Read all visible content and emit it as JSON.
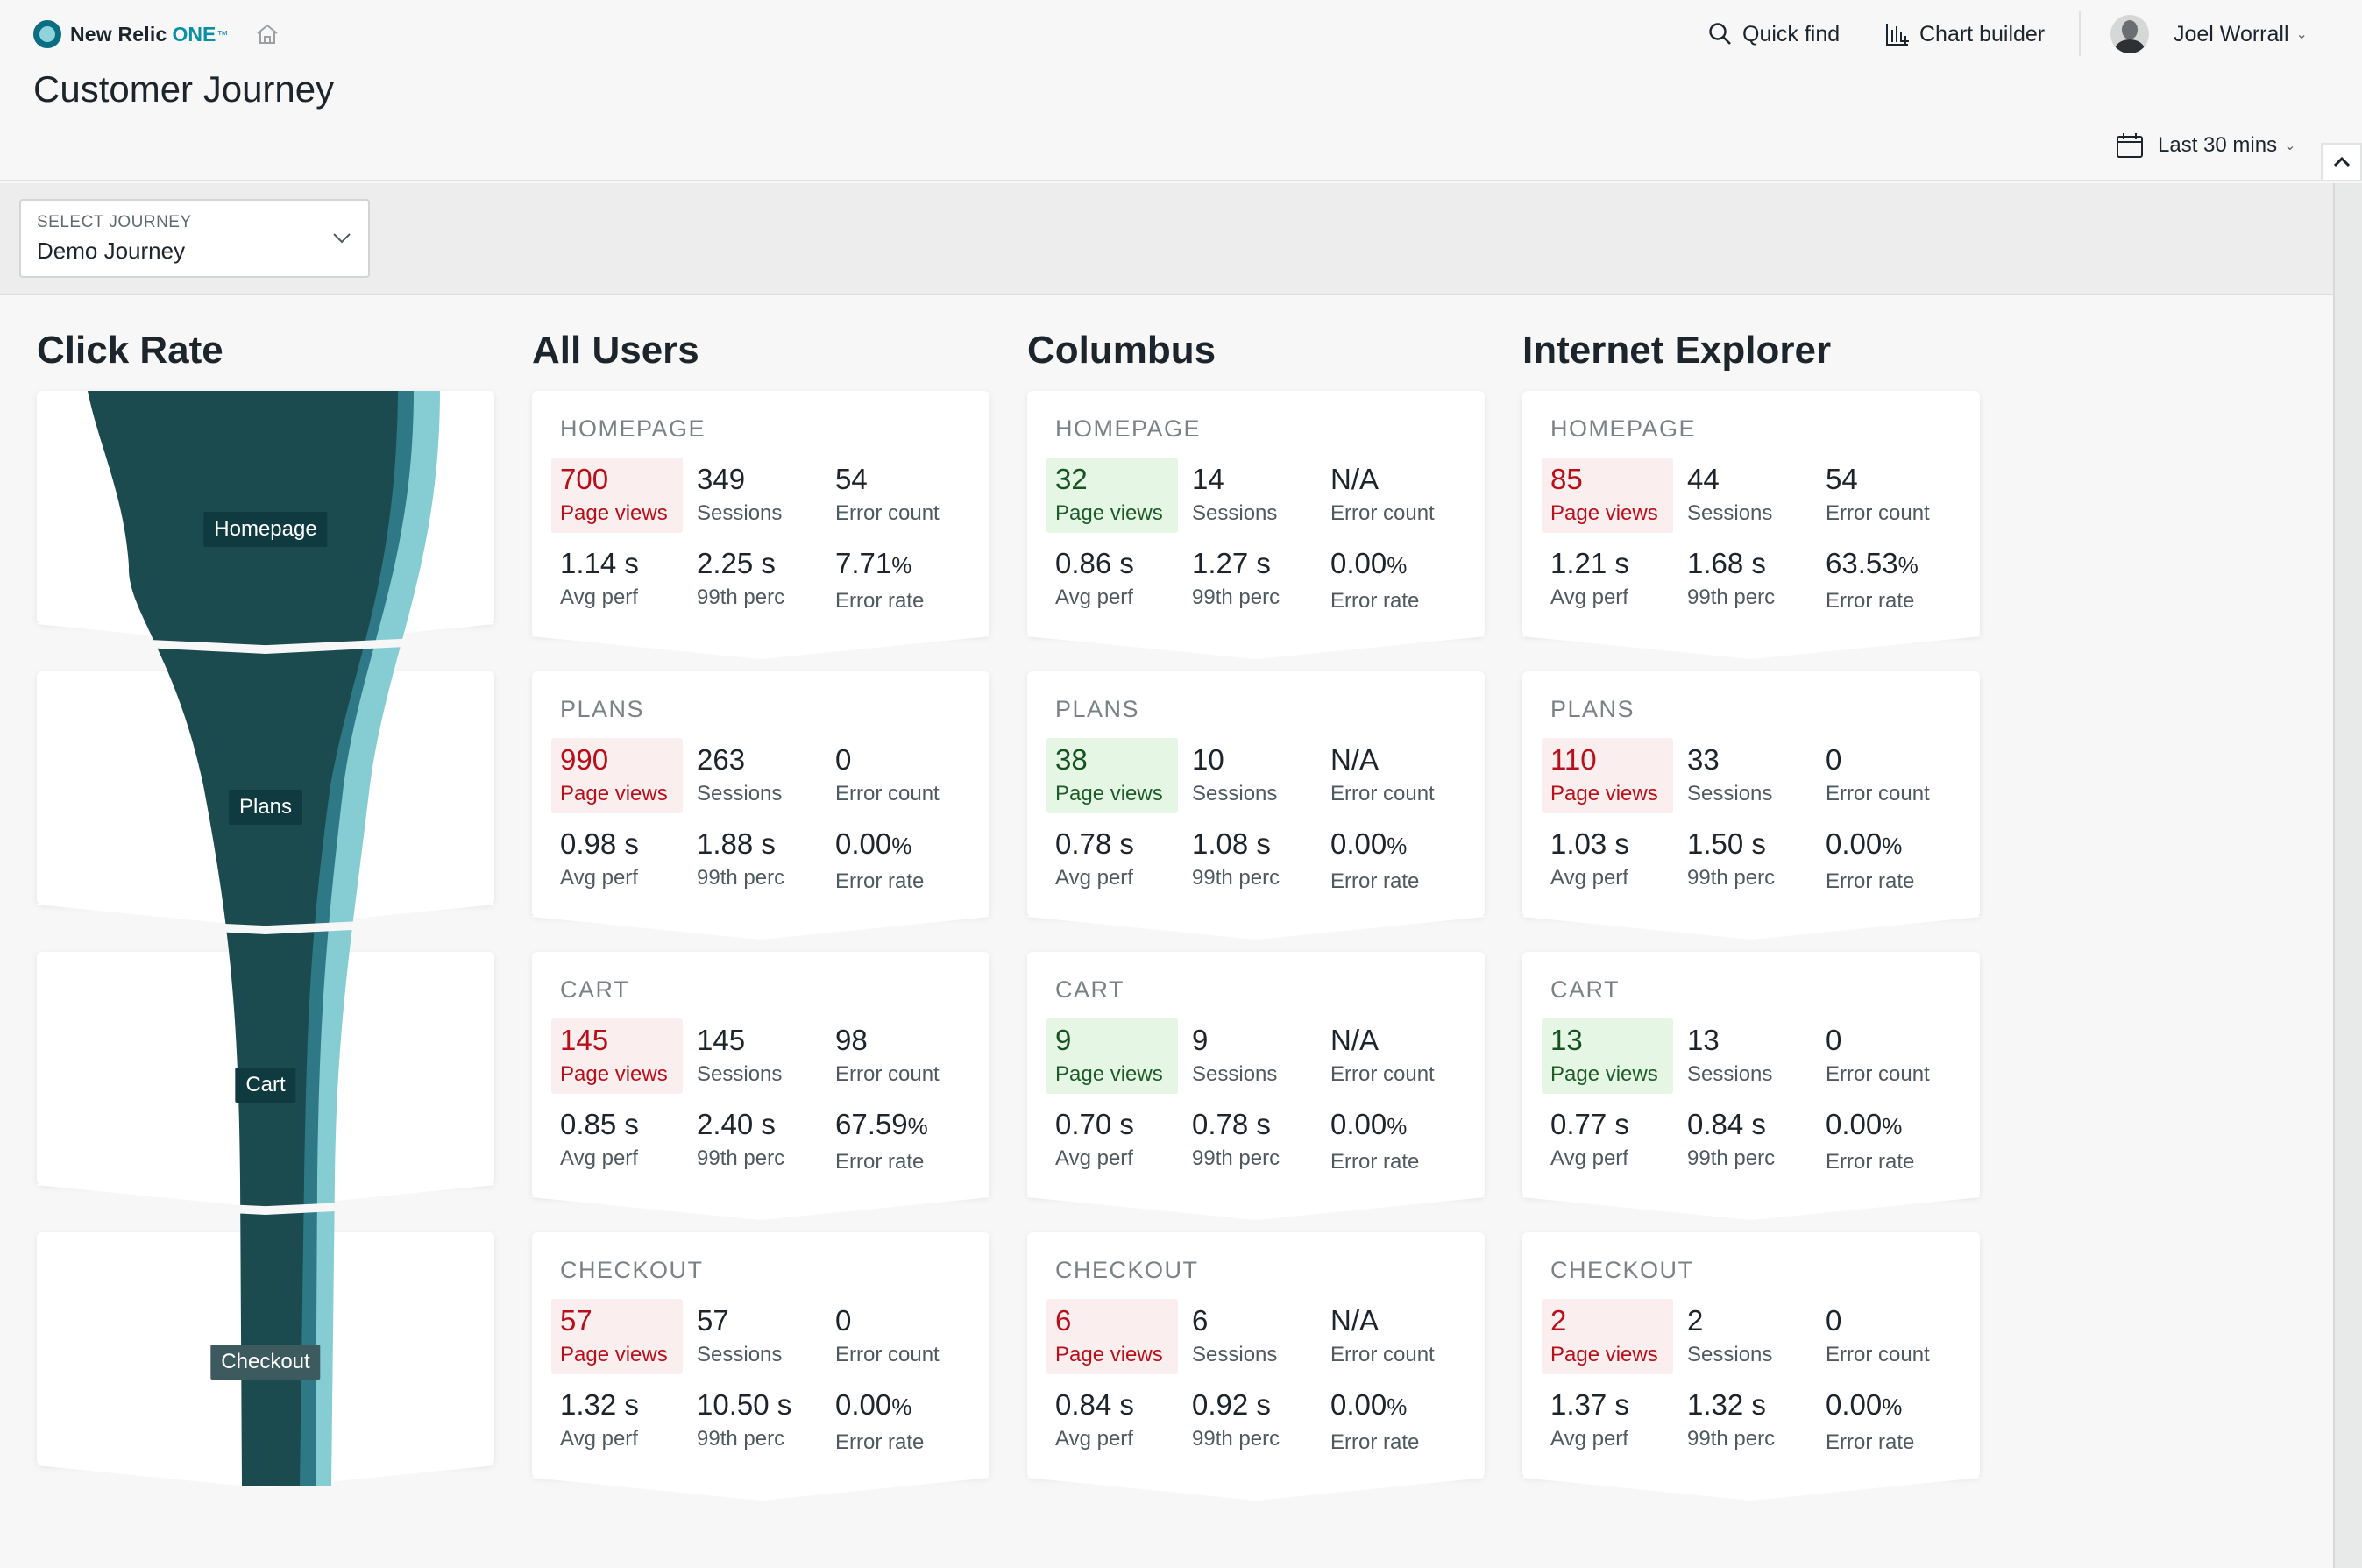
{
  "header": {
    "logo_text": "New Relic",
    "logo_one": "ONE",
    "logo_tm": "™",
    "quick_find": "Quick find",
    "chart_builder": "Chart builder",
    "user_name": "Joel Worrall",
    "page_title": "Customer Journey",
    "time_range": "Last 30 mins"
  },
  "filter": {
    "label": "SELECT JOURNEY",
    "value": "Demo Journey"
  },
  "funnel": {
    "title": "Click Rate",
    "steps": [
      "Homepage",
      "Plans",
      "Cart",
      "Checkout"
    ]
  },
  "columns": [
    {
      "title": "All Users",
      "steps": [
        {
          "name": "HOMEPAGE",
          "page_views": "700",
          "sessions": "349",
          "error_count": "54",
          "avg_perf": "1.14 s",
          "p99": "2.25 s",
          "error_rate": "7.71",
          "hl": "red"
        },
        {
          "name": "PLANS",
          "page_views": "990",
          "sessions": "263",
          "error_count": "0",
          "avg_perf": "0.98 s",
          "p99": "1.88 s",
          "error_rate": "0.00",
          "hl": "red"
        },
        {
          "name": "CART",
          "page_views": "145",
          "sessions": "145",
          "error_count": "98",
          "avg_perf": "0.85 s",
          "p99": "2.40 s",
          "error_rate": "67.59",
          "hl": "red"
        },
        {
          "name": "CHECKOUT",
          "page_views": "57",
          "sessions": "57",
          "error_count": "0",
          "avg_perf": "1.32 s",
          "p99": "10.50 s",
          "error_rate": "0.00",
          "hl": "red"
        }
      ]
    },
    {
      "title": "Columbus",
      "steps": [
        {
          "name": "HOMEPAGE",
          "page_views": "32",
          "sessions": "14",
          "error_count": "N/A",
          "avg_perf": "0.86 s",
          "p99": "1.27 s",
          "error_rate": "0.00",
          "hl": "green"
        },
        {
          "name": "PLANS",
          "page_views": "38",
          "sessions": "10",
          "error_count": "N/A",
          "avg_perf": "0.78 s",
          "p99": "1.08 s",
          "error_rate": "0.00",
          "hl": "green"
        },
        {
          "name": "CART",
          "page_views": "9",
          "sessions": "9",
          "error_count": "N/A",
          "avg_perf": "0.70 s",
          "p99": "0.78 s",
          "error_rate": "0.00",
          "hl": "green"
        },
        {
          "name": "CHECKOUT",
          "page_views": "6",
          "sessions": "6",
          "error_count": "N/A",
          "avg_perf": "0.84 s",
          "p99": "0.92 s",
          "error_rate": "0.00",
          "hl": "red"
        }
      ]
    },
    {
      "title": "Internet Explorer",
      "steps": [
        {
          "name": "HOMEPAGE",
          "page_views": "85",
          "sessions": "44",
          "error_count": "54",
          "avg_perf": "1.21 s",
          "p99": "1.68 s",
          "error_rate": "63.53",
          "hl": "red"
        },
        {
          "name": "PLANS",
          "page_views": "110",
          "sessions": "33",
          "error_count": "0",
          "avg_perf": "1.03 s",
          "p99": "1.50 s",
          "error_rate": "0.00",
          "hl": "red"
        },
        {
          "name": "CART",
          "page_views": "13",
          "sessions": "13",
          "error_count": "0",
          "avg_perf": "0.77 s",
          "p99": "0.84 s",
          "error_rate": "0.00",
          "hl": "green"
        },
        {
          "name": "CHECKOUT",
          "page_views": "2",
          "sessions": "2",
          "error_count": "0",
          "avg_perf": "1.37 s",
          "p99": "1.32 s",
          "error_rate": "0.00",
          "hl": "red"
        }
      ]
    }
  ],
  "labels": {
    "page_views": "Page views",
    "sessions": "Sessions",
    "error_count": "Error count",
    "avg_perf": "Avg perf",
    "p99": "99th perc",
    "error_rate": "Error rate",
    "percent": "%"
  },
  "colors": {
    "funnel_dark": "#1b4a4f",
    "funnel_mid": "#2f7886",
    "funnel_light": "#86cdd3",
    "highlight_red": "#b8101a",
    "highlight_green": "#14521f"
  }
}
